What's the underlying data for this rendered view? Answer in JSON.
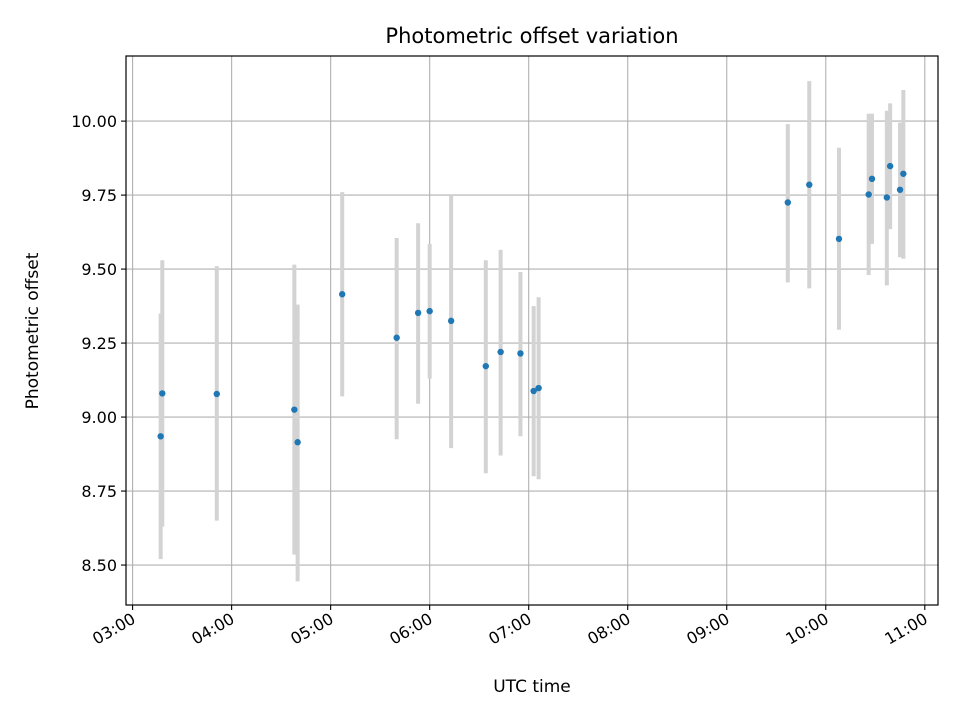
{
  "chart_data": {
    "type": "scatter",
    "title": "Photometric offset variation",
    "xlabel": "UTC time",
    "ylabel": "Photometric offset",
    "xlim": [
      "02:56",
      "11:08"
    ],
    "ylim": [
      8.365,
      10.22
    ],
    "grid": true,
    "x_ticks": [
      "03:00",
      "04:00",
      "05:00",
      "06:00",
      "07:00",
      "08:00",
      "09:00",
      "10:00",
      "11:00"
    ],
    "y_ticks": [
      8.5,
      8.75,
      9.0,
      9.25,
      9.5,
      9.75,
      10.0
    ],
    "y_tick_labels": [
      "8.50",
      "8.75",
      "9.00",
      "9.25",
      "9.50",
      "9.75",
      "10.00"
    ],
    "colors": {
      "point": "#1f77b4",
      "error_bar": "#d3d3d3",
      "grid": "#b0b0b0"
    },
    "points": [
      {
        "x": "03:17",
        "y": 8.935,
        "low": 8.52,
        "high": 9.35
      },
      {
        "x": "03:18",
        "y": 9.08,
        "low": 8.63,
        "high": 9.53
      },
      {
        "x": "03:51",
        "y": 9.078,
        "low": 8.65,
        "high": 9.51
      },
      {
        "x": "04:38",
        "y": 9.025,
        "low": 8.535,
        "high": 9.515
      },
      {
        "x": "04:40",
        "y": 8.915,
        "low": 8.445,
        "high": 9.38
      },
      {
        "x": "05:07",
        "y": 9.415,
        "low": 9.07,
        "high": 9.76
      },
      {
        "x": "05:40",
        "y": 9.268,
        "low": 8.925,
        "high": 9.605
      },
      {
        "x": "05:53",
        "y": 9.352,
        "low": 9.045,
        "high": 9.655
      },
      {
        "x": "06:00",
        "y": 9.358,
        "low": 9.13,
        "high": 9.585
      },
      {
        "x": "06:13",
        "y": 9.325,
        "low": 8.895,
        "high": 9.75
      },
      {
        "x": "06:34",
        "y": 9.172,
        "low": 8.81,
        "high": 9.53
      },
      {
        "x": "06:43",
        "y": 9.22,
        "low": 8.87,
        "high": 9.565
      },
      {
        "x": "06:55",
        "y": 9.215,
        "low": 8.935,
        "high": 9.49
      },
      {
        "x": "07:03",
        "y": 9.088,
        "low": 8.8,
        "high": 9.375
      },
      {
        "x": "07:06",
        "y": 9.098,
        "low": 8.79,
        "high": 9.405
      },
      {
        "x": "09:37",
        "y": 9.725,
        "low": 9.455,
        "high": 9.99
      },
      {
        "x": "09:50",
        "y": 9.785,
        "low": 9.435,
        "high": 10.135
      },
      {
        "x": "10:08",
        "y": 9.602,
        "low": 9.295,
        "high": 9.91
      },
      {
        "x": "10:26",
        "y": 9.752,
        "low": 9.48,
        "high": 10.025
      },
      {
        "x": "10:28",
        "y": 9.805,
        "low": 9.585,
        "high": 10.025
      },
      {
        "x": "10:37",
        "y": 9.742,
        "low": 9.445,
        "high": 10.035
      },
      {
        "x": "10:39",
        "y": 9.848,
        "low": 9.635,
        "high": 10.06
      },
      {
        "x": "10:45",
        "y": 9.768,
        "low": 9.54,
        "high": 9.995
      },
      {
        "x": "10:47",
        "y": 9.822,
        "low": 9.535,
        "high": 10.105
      }
    ]
  }
}
